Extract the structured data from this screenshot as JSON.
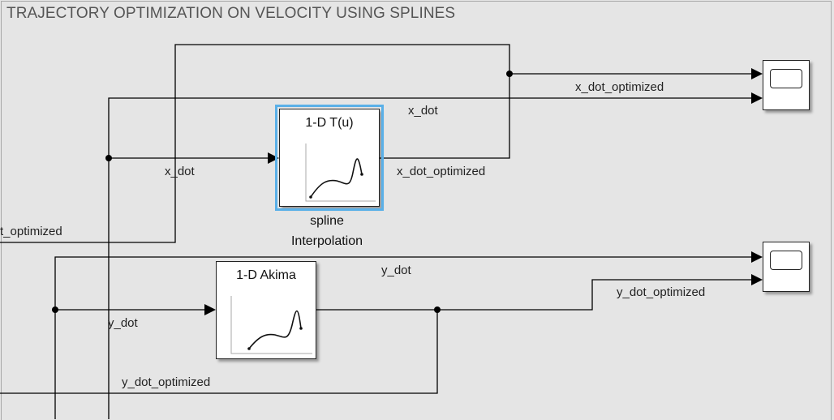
{
  "area": {
    "title": "TRAJECTORY OPTIMIZATION ON VELOCITY USING SPLINES"
  },
  "blocks": {
    "lookup_x": {
      "title": "1-D T(u)",
      "name_line1": "spline",
      "name_line2": "Interpolation"
    },
    "lookup_y": {
      "title": "1-D Akima"
    }
  },
  "signals": {
    "x_dot_input": "x_dot",
    "x_dot_optimized_out": "x_dot_optimized",
    "x_dot_optimized_scope": "x_dot_optimized",
    "x_dot_scope": "x_dot",
    "x_dot_optimized_left": "t_optimized",
    "y_dot_input": "y_dot",
    "y_dot_scope": "y_dot",
    "y_dot_optimized_scope": "y_dot_optimized",
    "y_dot_optimized_bottom": "y_dot_optimized"
  },
  "colors": {
    "background": "#e5e5e5",
    "selection": "#5ab0e8"
  }
}
